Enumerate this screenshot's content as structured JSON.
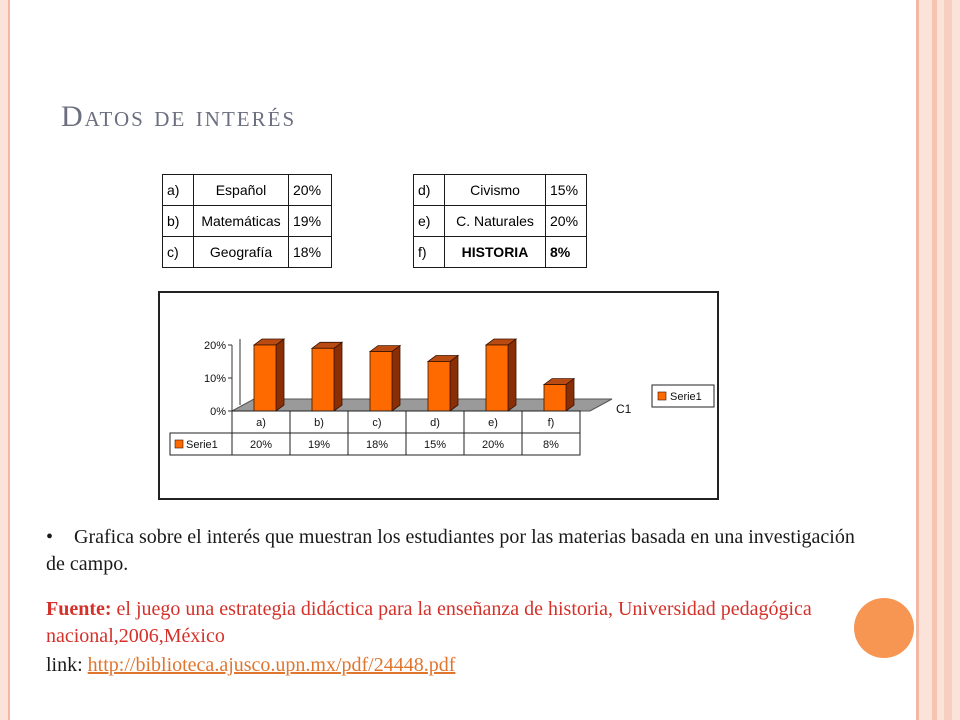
{
  "slide": {
    "title": "Datos de interés",
    "description": "Grafica sobre el interés que muestran los estudiantes por las materias basada en una investigación de campo.",
    "source_label": "Fuente:",
    "source_text": " el juego una estrategia didáctica para la enseñanza de historia, Universidad pedagógica nacional,2006,México",
    "link_label": "link: ",
    "link_url": "http://biblioteca.ajusco.upn.mx/pdf/24448.pdf"
  },
  "tables": [
    {
      "rows": [
        {
          "key": "a)",
          "subject": "Español",
          "pct": "20%"
        },
        {
          "key": "b)",
          "subject": "Matemáticas",
          "pct": "19%"
        },
        {
          "key": "c)",
          "subject": "Geografía",
          "pct": "18%"
        }
      ]
    },
    {
      "rows": [
        {
          "key": "d)",
          "subject": "Civismo",
          "pct": "15%"
        },
        {
          "key": "e)",
          "subject": "C. Naturales",
          "pct": "20%"
        },
        {
          "key": "f)",
          "subject": "HISTORIA",
          "pct": "8%",
          "bold": true
        }
      ]
    }
  ],
  "chart_data": {
    "type": "bar",
    "categories": [
      "a)",
      "b)",
      "c)",
      "d)",
      "e)",
      "f)"
    ],
    "series": [
      {
        "name": "Serie1",
        "values": [
          20,
          19,
          18,
          15,
          20,
          8
        ]
      }
    ],
    "value_labels": [
      "20%",
      "19%",
      "18%",
      "15%",
      "20%",
      "8%"
    ],
    "yticks": [
      "0%",
      "10%",
      "20%"
    ],
    "ylim": [
      0,
      20
    ],
    "depth_label": "C1",
    "legend": {
      "placement": "right",
      "label": "Serie1"
    },
    "colors": {
      "bar_front": "#ff6a00",
      "bar_side": "#8a2e05",
      "bar_top": "#b84a12",
      "floor": "#9a9a9a"
    }
  }
}
